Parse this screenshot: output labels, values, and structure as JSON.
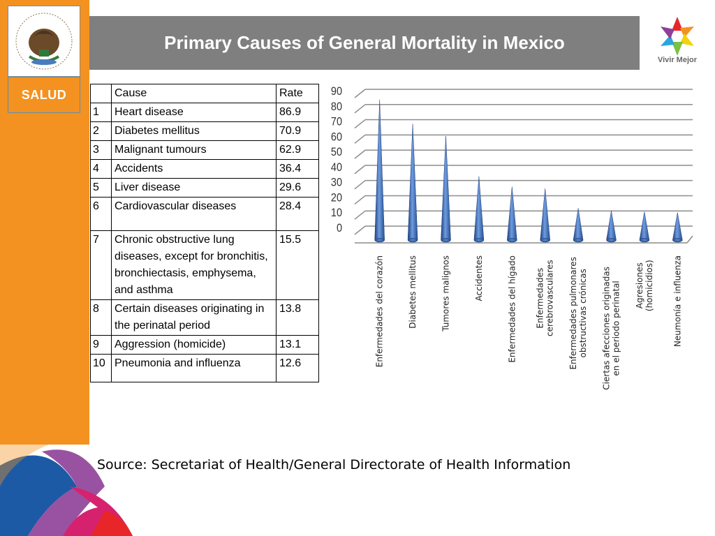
{
  "header": {
    "title": "Primary Causes of General Mortality in Mexico",
    "department": "SALUD",
    "brand": "Vivir Mejor"
  },
  "table": {
    "headers": [
      "",
      "Cause",
      "Rate"
    ],
    "rows": [
      {
        "rank": "1",
        "cause": "Heart disease",
        "rate": "86.9"
      },
      {
        "rank": "2",
        "cause": "Diabetes mellitus",
        "rate": "70.9"
      },
      {
        "rank": "3",
        "cause": "Malignant tumours",
        "rate": "62.9"
      },
      {
        "rank": "4",
        "cause": "Accidents",
        "rate": "36.4"
      },
      {
        "rank": "5",
        "cause": "Liver disease",
        "rate": "29.6"
      },
      {
        "rank": "6",
        "cause": "Cardiovascular diseases",
        "rate": "28.4"
      },
      {
        "rank": "7",
        "cause": "Chronic obstructive lung diseases, except for bronchitis, bronchiectasis, emphysema, and asthma",
        "rate": "15.5"
      },
      {
        "rank": "8",
        "cause": "Certain diseases originating in the perinatal period",
        "rate": "13.8"
      },
      {
        "rank": "9",
        "cause": "Aggression (homicide)",
        "rate": "13.1"
      },
      {
        "rank": "10",
        "cause": "Pneumonia and influenza",
        "rate": "12.6"
      }
    ]
  },
  "chart_data": {
    "type": "bar",
    "categories": [
      "Enfermedades del corazón",
      "Diabetes mellitus",
      "Tumores malignos",
      "Accidentes",
      "Enfermedades del hígado",
      "Enfermedades cerebrovasculares",
      "Enfermedades pulmonares obstructivas crónicas",
      "Ciertas afecciones originadas en el periodo perinatal",
      "Agresiones (homicidios)",
      "Neumonía e influenza"
    ],
    "values": [
      86.9,
      70.9,
      62.9,
      36.4,
      29.6,
      28.4,
      15.5,
      13.8,
      13.1,
      12.6
    ],
    "yticks": [
      0,
      10,
      20,
      30,
      40,
      50,
      60,
      70,
      80,
      90
    ],
    "ylim": [
      0,
      90
    ],
    "grid": true,
    "bar_shape": "cone",
    "bar_color": "#3c6fb5"
  },
  "footer": {
    "source": "Source: Secretariat of Health/General Directorate of Health Information"
  }
}
